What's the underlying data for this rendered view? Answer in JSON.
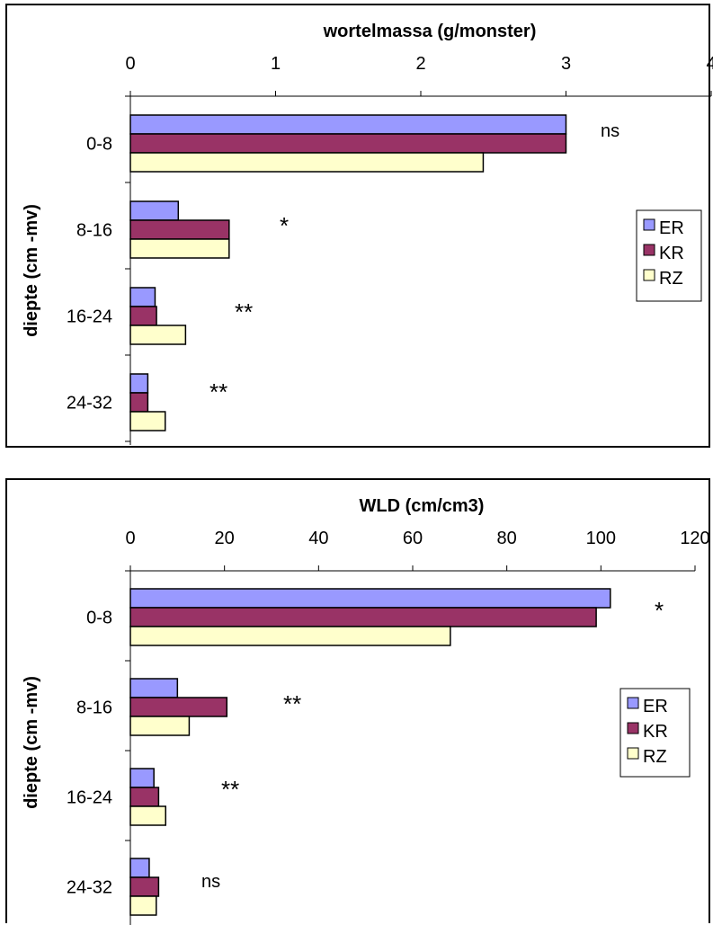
{
  "colors": {
    "ER": "#9999ff",
    "KR": "#993366",
    "RZ": "#ffffcc"
  },
  "chart_data": [
    {
      "type": "bar",
      "orientation": "horizontal",
      "title": "wortelmassa (g/monster)",
      "xlabel": "wortelmassa (g/monster)",
      "ylabel": "diepte (cm -mv)",
      "xlim": [
        0,
        4
      ],
      "xticks": [
        "0",
        "1",
        "2",
        "3",
        "4"
      ],
      "categories": [
        "0-8",
        "8-16",
        "16-24",
        "24-32"
      ],
      "series": [
        {
          "name": "ER",
          "values": [
            3.0,
            0.33,
            0.17,
            0.12
          ]
        },
        {
          "name": "KR",
          "values": [
            3.0,
            0.68,
            0.18,
            0.12
          ]
        },
        {
          "name": "RZ",
          "values": [
            2.43,
            0.68,
            0.38,
            0.24
          ]
        }
      ],
      "annotations": [
        "ns",
        "*",
        "**",
        "**"
      ],
      "legend": {
        "entries": [
          "ER",
          "KR",
          "RZ"
        ],
        "position": "right"
      },
      "grid": false
    },
    {
      "type": "bar",
      "orientation": "horizontal",
      "title": "WLD (cm/cm3)",
      "xlabel": "WLD (cm/cm3)",
      "ylabel": "diepte (cm -mv)",
      "xlim": [
        0,
        120
      ],
      "xticks": [
        "0",
        "20",
        "40",
        "60",
        "80",
        "100",
        "120"
      ],
      "categories": [
        "0-8",
        "8-16",
        "16-24",
        "24-32"
      ],
      "series": [
        {
          "name": "ER",
          "values": [
            102,
            10,
            5,
            4
          ]
        },
        {
          "name": "KR",
          "values": [
            99,
            20.5,
            6,
            6
          ]
        },
        {
          "name": "RZ",
          "values": [
            68,
            12.5,
            7.5,
            5.5
          ]
        }
      ],
      "annotations": [
        "*",
        "**",
        "**",
        "ns"
      ],
      "legend": {
        "entries": [
          "ER",
          "KR",
          "RZ"
        ],
        "position": "right"
      },
      "grid": false
    }
  ]
}
